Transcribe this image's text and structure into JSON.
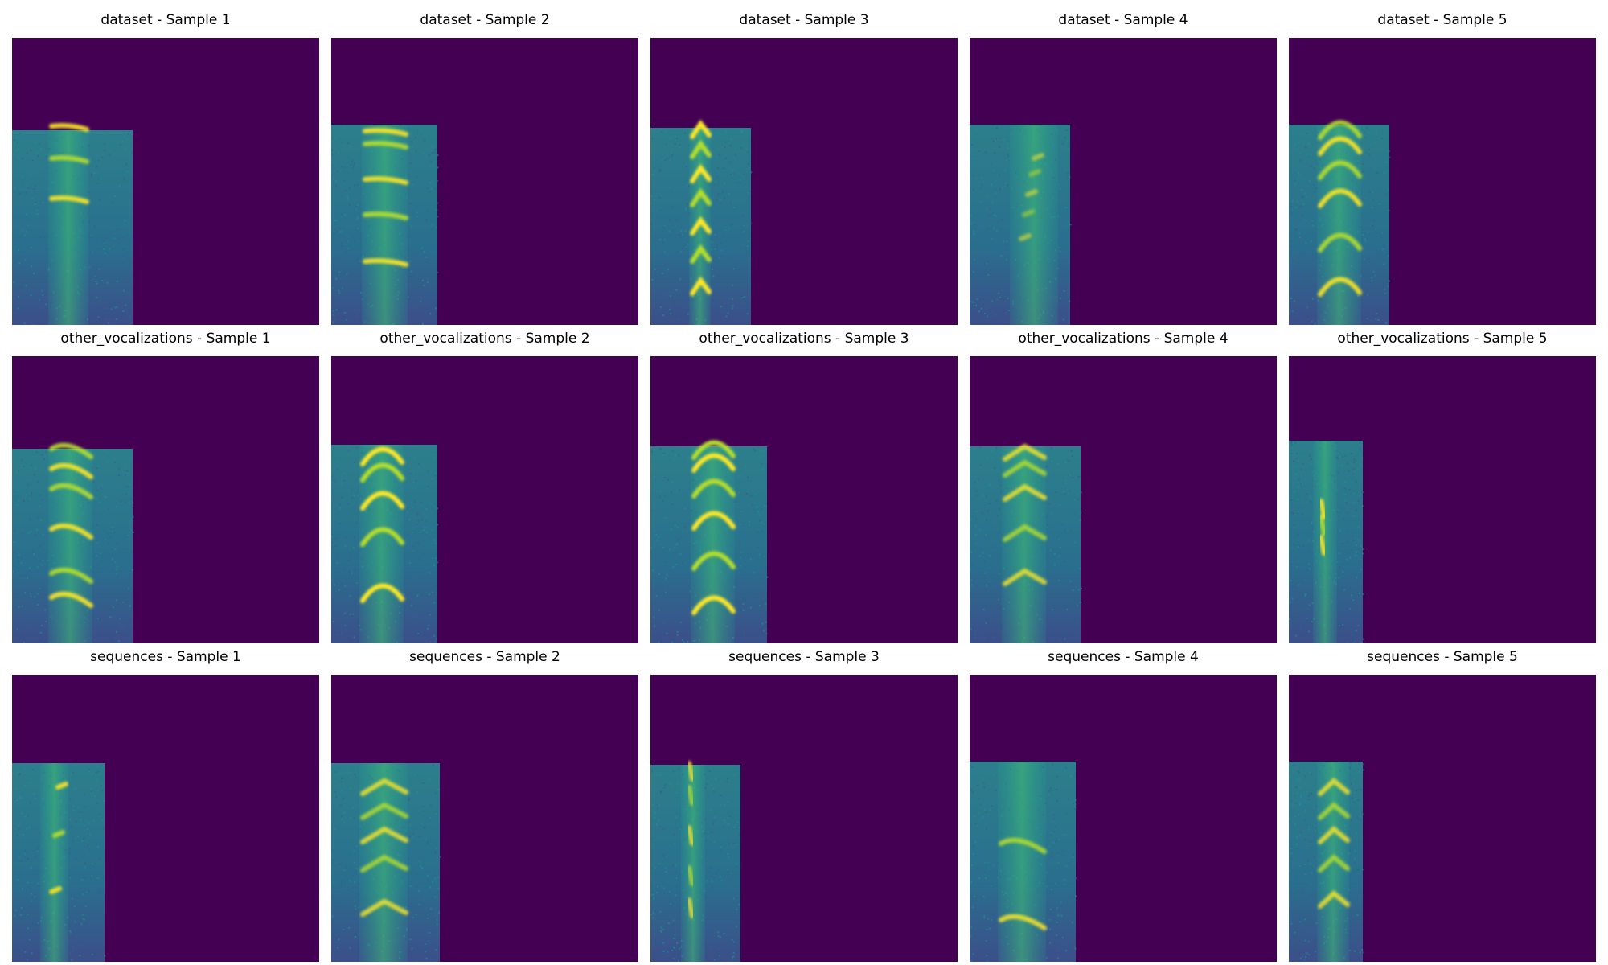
{
  "figure": {
    "background_color": "#440154",
    "rows": [
      {
        "category": "dataset",
        "titles": [
          "dataset - Sample 1",
          "dataset - Sample 2",
          "dataset - Sample 3",
          "dataset - Sample 4",
          "dataset - Sample 5"
        ]
      },
      {
        "category": "other_vocalizations",
        "titles": [
          "other_vocalizations - Sample 1",
          "other_vocalizations - Sample 2",
          "other_vocalizations - Sample 3",
          "other_vocalizations - Sample 4",
          "other_vocalizations - Sample 5"
        ]
      },
      {
        "category": "sequences",
        "titles": [
          "sequences - Sample 1",
          "sequences - Sample 2",
          "sequences - Sample 3",
          "sequences - Sample 4",
          "sequences - Sample 5"
        ]
      }
    ]
  }
}
